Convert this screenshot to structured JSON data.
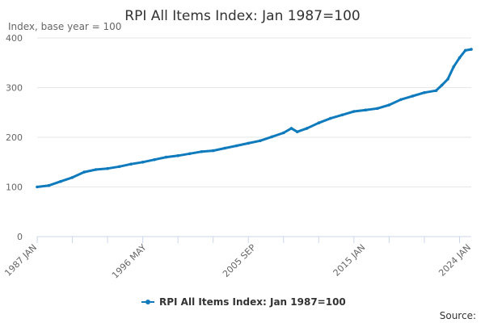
{
  "colors": {
    "series": "#0f7bbd",
    "grid": "#e6e6e6",
    "axis": "#ccd6eb",
    "text": "#333333",
    "muted": "#666666"
  },
  "source_label": "Source:",
  "chart_data": {
    "type": "line",
    "title": "RPI All Items Index: Jan 1987=100",
    "ylabel": "Index, base year = 100",
    "xlabel": "",
    "ylim": [
      0,
      400
    ],
    "yticks": [
      0,
      100,
      200,
      300,
      400
    ],
    "grid": true,
    "legend_position": "bottom-center",
    "x_range": [
      "1987 JAN",
      "2024 JAN"
    ],
    "x_tick_labels": [
      "1987 JAN",
      "1996 MAY",
      "2005 SEP",
      "2015 JAN",
      "2024 JAN"
    ],
    "series": [
      {
        "name": "RPI All Items Index: Jan 1987=100",
        "x": [
          "1987 JAN",
          "1988 JAN",
          "1989 JAN",
          "1990 JAN",
          "1991 JAN",
          "1992 JAN",
          "1993 JAN",
          "1994 JAN",
          "1995 JAN",
          "1996 JAN",
          "1997 JAN",
          "1998 JAN",
          "1999 JAN",
          "2000 JAN",
          "2001 JAN",
          "2002 JAN",
          "2003 JAN",
          "2004 JAN",
          "2005 JAN",
          "2006 JAN",
          "2007 JAN",
          "2008 JAN",
          "2008 SEP",
          "2009 MAR",
          "2010 JAN",
          "2011 JAN",
          "2012 JAN",
          "2013 JAN",
          "2014 JAN",
          "2015 JAN",
          "2016 JAN",
          "2017 JAN",
          "2018 JAN",
          "2019 JAN",
          "2020 JAN",
          "2021 JAN",
          "2021 JUL",
          "2022 JAN",
          "2022 JUL",
          "2023 JAN",
          "2023 JUL",
          "2024 JAN"
        ],
        "values": [
          100,
          103,
          111,
          119,
          130,
          135,
          137,
          141,
          146,
          150,
          155,
          160,
          163,
          167,
          171,
          173,
          178,
          183,
          188,
          193,
          201,
          209,
          218,
          211,
          218,
          229,
          238,
          245,
          252,
          255,
          258,
          265,
          276,
          283,
          290,
          294,
          305,
          317,
          342,
          360,
          375,
          377
        ]
      }
    ]
  }
}
